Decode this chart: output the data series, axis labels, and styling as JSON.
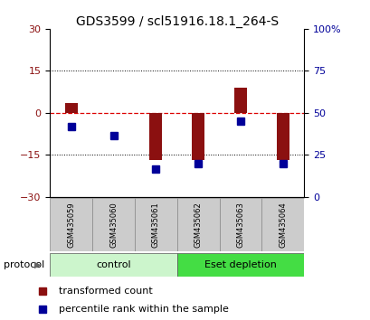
{
  "title": "GDS3599 / scl51916.18.1_264-S",
  "samples": [
    "GSM435059",
    "GSM435060",
    "GSM435061",
    "GSM435062",
    "GSM435063",
    "GSM435064"
  ],
  "red_values": [
    3.5,
    0,
    -17.0,
    -17.0,
    9.0,
    -17.0
  ],
  "blue_values": [
    -5.0,
    -8.0,
    -20.0,
    -18.0,
    -3.0,
    -18.0
  ],
  "ylim_left": [
    -30,
    30
  ],
  "ylim_right": [
    0,
    100
  ],
  "yticks_left": [
    -30,
    -15,
    0,
    15,
    30
  ],
  "yticks_right": [
    0,
    25,
    50,
    75,
    100
  ],
  "ytick_labels_right": [
    "0",
    "25",
    "50",
    "75",
    "100%"
  ],
  "red_color": "#8B1010",
  "blue_color": "#000099",
  "dashed_line_color": "#DD0000",
  "bg_color": "white",
  "plot_bg": "white",
  "control_color_light": "#ccf5cc",
  "control_color_dark": "#44dd44",
  "gray_box_color": "#cccccc",
  "protocol_label": "protocol",
  "legend_red": "transformed count",
  "legend_blue": "percentile rank within the sample",
  "bar_width": 0.3,
  "blue_marker_size": 6,
  "title_fontsize": 10,
  "axis_fontsize": 8,
  "tick_fontsize": 8,
  "sample_fontsize": 6,
  "legend_fontsize": 8,
  "proto_fontsize": 8
}
